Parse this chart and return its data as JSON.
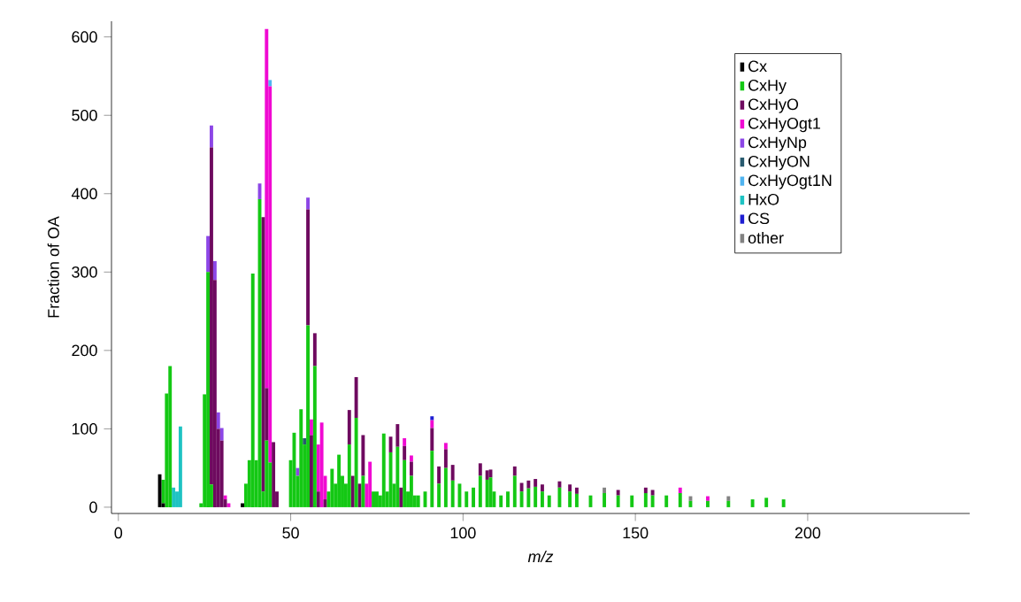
{
  "chart_data": {
    "type": "bar",
    "stacked": true,
    "xlabel": "m/z",
    "ylabel": "Fraction of OA",
    "x": [
      12,
      13,
      14,
      15,
      16,
      17,
      18,
      24,
      25,
      26,
      27,
      28,
      29,
      30,
      31,
      32,
      36,
      37,
      38,
      39,
      40,
      41,
      42,
      43,
      44,
      45,
      46,
      50,
      51,
      52,
      53,
      54,
      55,
      56,
      57,
      58,
      59,
      60,
      61,
      62,
      63,
      64,
      65,
      66,
      67,
      68,
      69,
      70,
      71,
      72,
      73,
      74,
      75,
      76,
      77,
      78,
      79,
      80,
      81,
      82,
      83,
      84,
      85,
      86,
      87,
      89,
      91,
      93,
      95,
      97,
      99,
      101,
      103,
      105,
      107,
      108,
      109,
      111,
      113,
      115,
      117,
      119,
      121,
      123,
      125,
      128,
      131,
      133,
      137,
      141,
      145,
      149,
      153,
      155,
      159,
      163,
      166,
      171,
      177,
      184,
      188,
      193
    ],
    "series": [
      {
        "name": "Cx",
        "color": "#000000",
        "values": [
          42,
          5,
          0,
          0,
          0,
          0,
          0,
          0,
          0,
          0,
          0,
          0,
          0,
          0,
          0,
          0,
          5,
          0,
          0,
          0,
          0,
          0,
          0,
          0,
          0,
          0,
          0,
          0,
          0,
          0,
          0,
          0,
          0,
          0,
          0,
          0,
          0,
          0,
          0,
          0,
          0,
          0,
          0,
          0,
          0,
          0,
          0,
          0,
          0,
          0,
          0,
          0,
          0,
          0,
          0,
          0,
          0,
          0,
          0,
          0,
          0,
          0,
          0,
          0,
          0,
          0,
          0,
          0,
          0,
          0,
          0,
          0,
          0,
          0,
          0,
          0,
          0,
          0,
          0,
          0,
          0,
          0,
          0,
          0,
          0,
          0,
          0,
          0,
          0,
          0,
          0,
          0,
          0,
          0,
          0,
          0,
          0,
          0,
          0,
          0,
          0,
          0
        ]
      },
      {
        "name": "CxHy",
        "color": "#14c814",
        "values": [
          0,
          30,
          145,
          180,
          0,
          0,
          0,
          5,
          144,
          300,
          29,
          0,
          0,
          0,
          0,
          0,
          0,
          30,
          60,
          298,
          60,
          393,
          20,
          85,
          57,
          0,
          0,
          60,
          95,
          40,
          125,
          80,
          232,
          0,
          180,
          0,
          0,
          0,
          20,
          49,
          30,
          67,
          40,
          30,
          80,
          0,
          114,
          0,
          40,
          0,
          0,
          20,
          20,
          15,
          94,
          20,
          70,
          30,
          77,
          0,
          60,
          20,
          40,
          15,
          15,
          20,
          72,
          30,
          50,
          34,
          30,
          20,
          25,
          40,
          35,
          38,
          20,
          15,
          20,
          40,
          20,
          24,
          26,
          20,
          15,
          25,
          20,
          17,
          15,
          18,
          15,
          15,
          18,
          15,
          15,
          18,
          8,
          8,
          8,
          10,
          12,
          10
        ]
      },
      {
        "name": "CxHyO",
        "color": "#6e0a5f",
        "values": [
          0,
          0,
          0,
          0,
          0,
          0,
          0,
          0,
          0,
          0,
          430,
          290,
          100,
          85,
          10,
          0,
          0,
          0,
          0,
          0,
          0,
          0,
          350,
          67,
          0,
          83,
          20,
          0,
          0,
          0,
          0,
          0,
          148,
          92,
          42,
          20,
          0,
          10,
          0,
          0,
          0,
          0,
          0,
          0,
          44,
          40,
          52,
          30,
          52,
          0,
          0,
          0,
          0,
          0,
          0,
          0,
          20,
          0,
          29,
          25,
          18,
          0,
          18,
          0,
          0,
          0,
          29,
          22,
          24,
          20,
          0,
          0,
          0,
          16,
          12,
          10,
          0,
          0,
          0,
          12,
          11,
          10,
          10,
          9,
          0,
          8,
          9,
          8,
          0,
          0,
          7,
          0,
          7,
          7,
          0,
          0,
          0,
          0,
          0,
          0,
          0,
          0
        ]
      },
      {
        "name": "CxHyOgt1",
        "color": "#f00ad2",
        "values": [
          0,
          0,
          0,
          0,
          0,
          0,
          0,
          0,
          0,
          0,
          0,
          0,
          0,
          0,
          5,
          5,
          0,
          0,
          0,
          0,
          0,
          0,
          0,
          458,
          480,
          0,
          0,
          0,
          0,
          0,
          0,
          0,
          0,
          20,
          0,
          60,
          108,
          30,
          0,
          0,
          0,
          0,
          0,
          0,
          0,
          0,
          0,
          0,
          0,
          30,
          58,
          0,
          0,
          0,
          0,
          0,
          0,
          0,
          0,
          0,
          10,
          0,
          8,
          0,
          0,
          0,
          10,
          0,
          8,
          0,
          0,
          0,
          0,
          0,
          0,
          0,
          0,
          0,
          0,
          0,
          0,
          0,
          0,
          0,
          0,
          0,
          0,
          0,
          0,
          0,
          0,
          0,
          0,
          0,
          0,
          7,
          0,
          6,
          0,
          0,
          0,
          0
        ]
      },
      {
        "name": "CxHyNp",
        "color": "#8c46e6",
        "values": [
          0,
          0,
          0,
          0,
          0,
          0,
          0,
          0,
          0,
          46,
          28,
          24,
          21,
          16,
          0,
          0,
          0,
          0,
          0,
          0,
          0,
          20,
          0,
          0,
          0,
          0,
          0,
          0,
          0,
          10,
          0,
          0,
          15,
          0,
          0,
          0,
          0,
          0,
          0,
          0,
          0,
          0,
          0,
          0,
          0,
          0,
          0,
          0,
          0,
          0,
          0,
          0,
          0,
          0,
          0,
          0,
          0,
          0,
          0,
          0,
          0,
          0,
          0,
          0,
          0,
          0,
          0,
          0,
          0,
          0,
          0,
          0,
          0,
          0,
          0,
          0,
          0,
          0,
          0,
          0,
          0,
          0,
          0,
          0,
          0,
          0,
          0,
          0,
          0,
          0,
          0,
          0,
          0,
          0,
          0,
          0,
          0,
          0,
          0,
          0,
          0,
          0
        ]
      },
      {
        "name": "CxHyON",
        "color": "#285a6e",
        "values": [
          0,
          0,
          0,
          0,
          0,
          0,
          0,
          0,
          0,
          0,
          0,
          0,
          0,
          0,
          0,
          0,
          0,
          0,
          0,
          0,
          0,
          0,
          0,
          0,
          0,
          0,
          0,
          0,
          0,
          0,
          0,
          8,
          0,
          0,
          0,
          0,
          0,
          0,
          0,
          0,
          0,
          0,
          0,
          0,
          0,
          0,
          0,
          0,
          0,
          0,
          0,
          0,
          0,
          0,
          0,
          0,
          0,
          0,
          0,
          0,
          0,
          0,
          0,
          0,
          0,
          0,
          0,
          0,
          0,
          0,
          0,
          0,
          0,
          0,
          0,
          0,
          0,
          0,
          0,
          0,
          0,
          0,
          0,
          0,
          0,
          0,
          0,
          0,
          0,
          0,
          0,
          0,
          0,
          0,
          0,
          0,
          0,
          0,
          0,
          0,
          0,
          0
        ]
      },
      {
        "name": "CxHyOgt1N",
        "color": "#50b4f0",
        "values": [
          0,
          0,
          0,
          0,
          0,
          0,
          0,
          0,
          0,
          0,
          0,
          0,
          0,
          0,
          0,
          0,
          0,
          0,
          0,
          0,
          0,
          0,
          0,
          0,
          8,
          0,
          0,
          0,
          0,
          0,
          0,
          0,
          0,
          0,
          0,
          0,
          0,
          0,
          0,
          0,
          0,
          0,
          0,
          0,
          0,
          0,
          0,
          0,
          0,
          0,
          0,
          0,
          0,
          0,
          0,
          0,
          0,
          0,
          0,
          0,
          0,
          0,
          0,
          0,
          0,
          0,
          0,
          0,
          0,
          0,
          0,
          0,
          0,
          0,
          0,
          0,
          0,
          0,
          0,
          0,
          0,
          0,
          0,
          0,
          0,
          0,
          0,
          0,
          0,
          0,
          0,
          0,
          0,
          0,
          0,
          0,
          0,
          0,
          0,
          0,
          0,
          0
        ]
      },
      {
        "name": "HxO",
        "color": "#1ec3c3",
        "values": [
          0,
          0,
          0,
          0,
          25,
          20,
          103,
          0,
          0,
          0,
          0,
          0,
          0,
          0,
          0,
          0,
          0,
          0,
          0,
          0,
          0,
          0,
          0,
          0,
          0,
          0,
          0,
          0,
          0,
          0,
          0,
          0,
          0,
          0,
          0,
          0,
          0,
          0,
          0,
          0,
          0,
          0,
          0,
          0,
          0,
          0,
          0,
          0,
          0,
          0,
          0,
          0,
          0,
          0,
          0,
          0,
          0,
          0,
          0,
          0,
          0,
          0,
          0,
          0,
          0,
          0,
          0,
          0,
          0,
          0,
          0,
          0,
          0,
          0,
          0,
          0,
          0,
          0,
          0,
          0,
          0,
          0,
          0,
          0,
          0,
          0,
          0,
          0,
          0,
          0,
          0,
          0,
          0,
          0,
          0,
          0,
          0,
          0,
          0,
          0,
          0,
          0
        ]
      },
      {
        "name": "CS",
        "color": "#1e1ed2",
        "values": [
          0,
          0,
          0,
          0,
          0,
          0,
          0,
          0,
          0,
          0,
          0,
          0,
          0,
          0,
          0,
          0,
          0,
          0,
          0,
          0,
          0,
          0,
          0,
          0,
          0,
          0,
          0,
          0,
          0,
          0,
          0,
          0,
          0,
          0,
          0,
          0,
          0,
          0,
          0,
          0,
          0,
          0,
          0,
          0,
          0,
          0,
          0,
          0,
          0,
          0,
          0,
          0,
          0,
          0,
          0,
          0,
          0,
          0,
          0,
          0,
          0,
          0,
          0,
          0,
          0,
          0,
          5,
          0,
          0,
          0,
          0,
          0,
          0,
          0,
          0,
          0,
          0,
          0,
          0,
          0,
          0,
          0,
          0,
          0,
          0,
          0,
          0,
          0,
          0,
          0,
          0,
          0,
          0,
          0,
          0,
          0,
          0,
          0,
          0,
          0,
          0,
          0
        ]
      },
      {
        "name": "other",
        "color": "#828282",
        "values": [
          0,
          0,
          0,
          0,
          0,
          0,
          0,
          0,
          0,
          0,
          0,
          0,
          0,
          0,
          0,
          0,
          0,
          0,
          0,
          0,
          0,
          0,
          0,
          0,
          0,
          0,
          0,
          0,
          0,
          0,
          0,
          0,
          0,
          0,
          0,
          0,
          0,
          0,
          0,
          0,
          0,
          0,
          0,
          0,
          0,
          0,
          0,
          0,
          0,
          0,
          0,
          0,
          0,
          0,
          0,
          0,
          0,
          0,
          0,
          0,
          0,
          0,
          0,
          0,
          0,
          0,
          0,
          0,
          0,
          0,
          0,
          0,
          0,
          0,
          0,
          0,
          0,
          0,
          0,
          0,
          0,
          0,
          0,
          0,
          0,
          0,
          0,
          0,
          0,
          7,
          0,
          0,
          0,
          0,
          0,
          0,
          6,
          0,
          6,
          0,
          0,
          0
        ]
      }
    ],
    "xlim": [
      -2,
      247
    ],
    "ylim": [
      -8,
      620
    ],
    "xticks": [
      0,
      50,
      100,
      150,
      200
    ],
    "yticks": [
      0,
      100,
      200,
      300,
      400,
      500,
      600
    ],
    "legend": "top right"
  }
}
